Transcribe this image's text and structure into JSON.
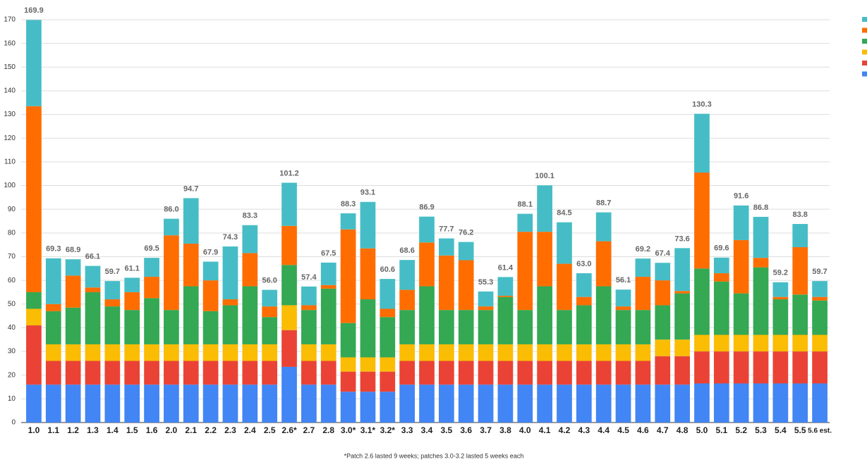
{
  "chart_data": {
    "type": "stacked_bar",
    "categories": [
      "1.0",
      "1.1",
      "1.2",
      "1.3",
      "1.4",
      "1.5",
      "1.6",
      "2.0",
      "2.1",
      "2.2",
      "2.3",
      "2.4",
      "2.5",
      "2.6*",
      "2.7",
      "2.8",
      "3.0*",
      "3.1*",
      "3.2*",
      "3.3",
      "3.4",
      "3.5",
      "3.6",
      "3.7",
      "3.8",
      "4.0",
      "4.1",
      "4.2",
      "4.3",
      "4.4",
      "4.5",
      "4.6",
      "4.7",
      "4.8",
      "5.0",
      "5.1",
      "5.2",
      "5.3",
      "5.4",
      "5.5",
      "5.6 est."
    ],
    "series": [
      {
        "color": "#4285f4",
        "values": [
          16,
          16,
          16,
          16,
          16,
          16,
          16,
          16,
          16,
          16,
          16,
          16,
          16,
          23.5,
          16,
          16,
          13,
          13,
          13,
          16,
          16,
          16,
          16,
          16,
          16,
          16,
          16,
          16,
          16,
          16,
          16,
          16,
          16,
          16,
          16.5,
          16.5,
          16.5,
          16.5,
          16.5,
          16.5,
          16.5
        ]
      },
      {
        "color": "#ea4335",
        "values": [
          25,
          10,
          10,
          10,
          10,
          10,
          10,
          10,
          10,
          10,
          10,
          10,
          10,
          15.5,
          10,
          10,
          8.5,
          8.5,
          8.5,
          10,
          10,
          10,
          10,
          10,
          10,
          10,
          10,
          10,
          10,
          10,
          10,
          10,
          12,
          12,
          13.5,
          13.5,
          13.5,
          13.5,
          13.5,
          13.5,
          13.5
        ]
      },
      {
        "color": "#fbbc04",
        "values": [
          7,
          7,
          7,
          7,
          7,
          7,
          7,
          7,
          7,
          7,
          7,
          7,
          7,
          10.5,
          7,
          7,
          6,
          6,
          6,
          7,
          7,
          7,
          7,
          7,
          7,
          7,
          7,
          7,
          7,
          7,
          7,
          7,
          7,
          7,
          7,
          7,
          7,
          7,
          7,
          7,
          7
        ]
      },
      {
        "color": "#34a853",
        "values": [
          7,
          14,
          15.5,
          22,
          16,
          14.5,
          19.5,
          14.5,
          24.5,
          14,
          16.5,
          24.5,
          11.5,
          17,
          14.5,
          23.5,
          14.5,
          24.5,
          17,
          14.5,
          24.5,
          14.5,
          14.5,
          14.5,
          20,
          14.5,
          24.5,
          14.5,
          16.5,
          24.5,
          14.5,
          14.5,
          14.5,
          19.5,
          28,
          22.5,
          17.5,
          28.5,
          15,
          17,
          14.5
        ]
      },
      {
        "color": "#ff6d01",
        "values": [
          78.5,
          3,
          13.5,
          2,
          3,
          7.5,
          9,
          31.5,
          18,
          13,
          2.5,
          14,
          4.5,
          16.5,
          2,
          1.5,
          39.5,
          21.5,
          3.5,
          8.5,
          18.5,
          23,
          21,
          1.5,
          0.5,
          33,
          23,
          19.5,
          3.5,
          19,
          1.5,
          14,
          10.5,
          1,
          40.5,
          3.5,
          22.5,
          4,
          1,
          20,
          1.5
        ]
      },
      {
        "color": "#46bdc6",
        "values": [
          36.4,
          19.3,
          6.9,
          9.1,
          7.7,
          6.1,
          8,
          7,
          19.2,
          7.9,
          22.3,
          11.8,
          7,
          18.2,
          7.9,
          9.5,
          6.8,
          19.6,
          12.6,
          12.6,
          10.9,
          7.2,
          7.7,
          6.3,
          7.9,
          7.6,
          19.6,
          17.5,
          10,
          12.2,
          7.1,
          7.7,
          7.4,
          18.1,
          24.8,
          6.6,
          14.6,
          17.3,
          6.2,
          9.8,
          6.7
        ]
      }
    ],
    "total_labels": [
      "169.9",
      "69.3",
      "68.9",
      "66.1",
      "59.7",
      "61.1",
      "69.5",
      "86.0",
      "94.7",
      "67.9",
      "74.3",
      "83.3",
      "56.0",
      "101.2",
      "57.4",
      "67.5",
      "88.3",
      "93.1",
      "60.6",
      "68.6",
      "86.9",
      "77.7",
      "76.2",
      "55.3",
      "61.4",
      "88.1",
      "100.1",
      "84.5",
      "63.0",
      "88.7",
      "56.1",
      "69.2",
      "67.4",
      "73.6",
      "130.3",
      "69.6",
      "91.6",
      "86.8",
      "59.2",
      "83.8",
      "59.7"
    ],
    "ylim": [
      0,
      170
    ],
    "yticks": [
      0,
      10,
      20,
      30,
      40,
      50,
      60,
      70,
      80,
      90,
      100,
      110,
      120,
      130,
      140,
      150,
      160,
      170
    ],
    "grid": true,
    "footnote": "*Patch 2.6 lasted 9 weeks; patches 3.0-3.2 lasted 5 weeks each"
  }
}
